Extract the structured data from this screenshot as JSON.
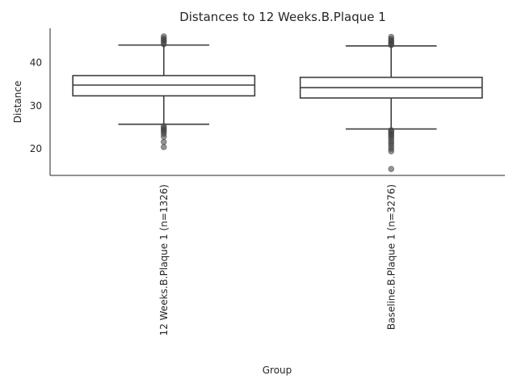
{
  "chart_data": {
    "type": "box",
    "title": "Distances to 12 Weeks.B.Plaque 1",
    "xlabel": "Group",
    "ylabel": "Distance",
    "ylim": [
      13.8,
      48.0
    ],
    "yticks": [
      20,
      30,
      40
    ],
    "grid": false,
    "colors": {
      "line": "#3d3d3d",
      "text": "#262626",
      "background": "#ffffff"
    },
    "groups": [
      {
        "label": "12 Weeks.B.Plaque 1 (n=1326)",
        "whisker_low": 25.7,
        "q1": 32.3,
        "median": 34.8,
        "q3": 37.0,
        "whisker_high": 44.1,
        "fliers": [
          20.4,
          21.6,
          22.8,
          23.5,
          24.0,
          24.4,
          24.8,
          25.2,
          44.3,
          44.8,
          45.2,
          45.6,
          46.1
        ]
      },
      {
        "label": "Baseline.B.Plaque 1 (n=3276)",
        "whisker_low": 24.6,
        "q1": 31.8,
        "median": 34.2,
        "q3": 36.6,
        "whisker_high": 43.9,
        "fliers": [
          15.3,
          19.4,
          20.0,
          20.6,
          21.2,
          21.7,
          22.3,
          22.8,
          23.2,
          23.6,
          24.0,
          24.3,
          44.1,
          44.4,
          44.8,
          45.1,
          45.5,
          46.0
        ]
      }
    ]
  }
}
